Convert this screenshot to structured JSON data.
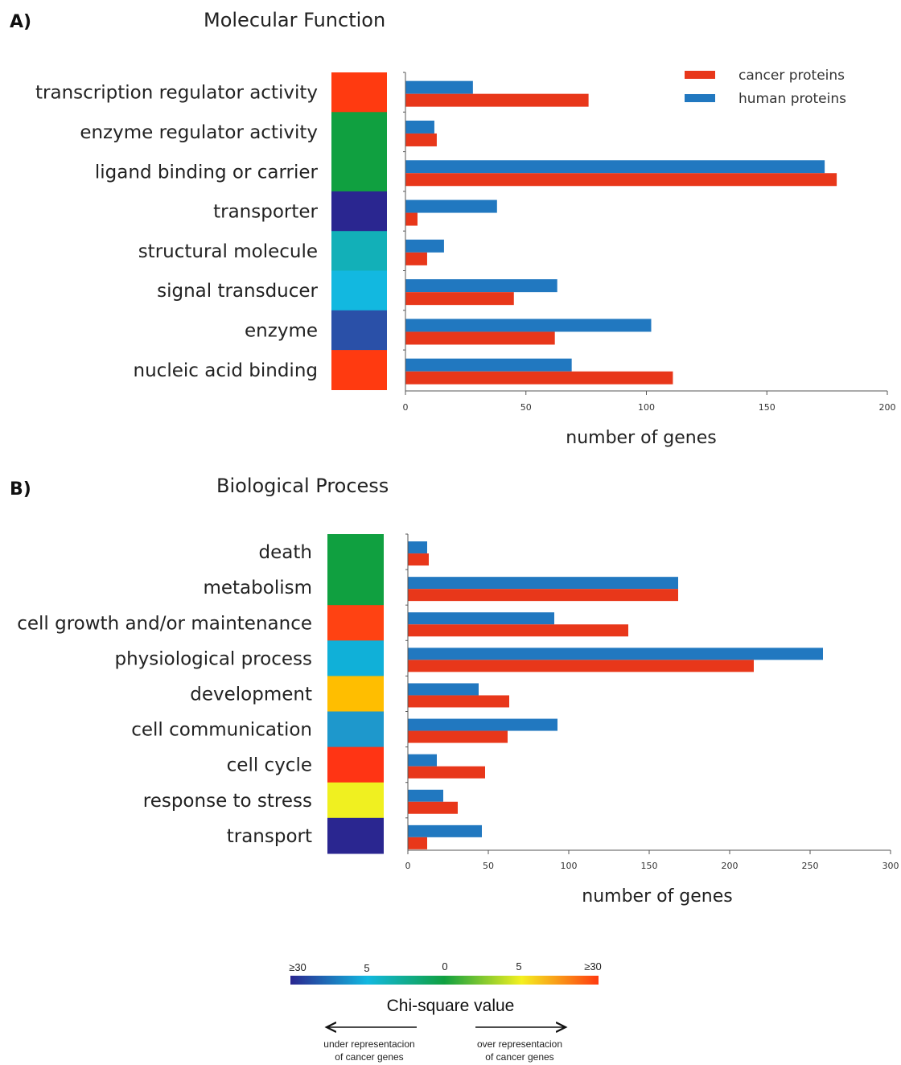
{
  "colors": {
    "cancer": "#e8371a",
    "human": "#2178c0",
    "axis": "#555555"
  },
  "chart_data": [
    {
      "panel_letter": "A)",
      "title": "Molecular Function",
      "type": "bar",
      "orientation": "horizontal",
      "xlabel": "number of genes",
      "xlim": [
        0,
        200
      ],
      "xticks": [
        "0",
        "50",
        "100",
        "150",
        "200"
      ],
      "legend": {
        "placement": "top-right",
        "entries": [
          "cancer proteins",
          "human proteins"
        ]
      },
      "categories": [
        "transcription regulator activity",
        "enzyme regulator activity",
        "ligand binding or carrier",
        "transporter",
        "structural molecule",
        "signal transducer",
        "enzyme",
        "nucleic acid binding"
      ],
      "heat_colors": [
        "#ff3a10",
        "#10a040",
        "#10a040",
        "#2a2690",
        "#12b0b8",
        "#12b8e0",
        "#2a50a8",
        "#ff3a10"
      ],
      "series": [
        {
          "name": "human proteins",
          "values": [
            28,
            12,
            174,
            38,
            16,
            63,
            102,
            69
          ]
        },
        {
          "name": "cancer proteins",
          "values": [
            76,
            13,
            179,
            5,
            9,
            45,
            62,
            111
          ]
        }
      ]
    },
    {
      "panel_letter": "B)",
      "title": "Biological Process",
      "type": "bar",
      "orientation": "horizontal",
      "xlabel": "number of genes",
      "xlim": [
        0,
        300
      ],
      "xticks": [
        "0",
        "50",
        "100",
        "150",
        "200",
        "250",
        "300"
      ],
      "categories": [
        "death",
        "metabolism",
        "cell growth and/or maintenance",
        "physiological process",
        "development",
        "cell communication",
        "cell cycle",
        "response to stress",
        "transport"
      ],
      "heat_colors": [
        "#10a040",
        "#10a040",
        "#ff4212",
        "#10b0d8",
        "#ffbe00",
        "#1e98cc",
        "#ff3414",
        "#f0f020",
        "#2a2690"
      ],
      "series": [
        {
          "name": "human proteins",
          "values": [
            12,
            168,
            91,
            258,
            44,
            93,
            18,
            22,
            46
          ]
        },
        {
          "name": "cancer proteins",
          "values": [
            13,
            168,
            137,
            215,
            63,
            62,
            48,
            31,
            12
          ]
        }
      ]
    }
  ],
  "colorbar": {
    "ticks": [
      "≥30",
      "5",
      "0",
      "5",
      "≥30"
    ],
    "title": "Chi-square value",
    "left_note": [
      "under representacion",
      "of cancer genes"
    ],
    "right_note": [
      "over representacion",
      "of cancer genes"
    ],
    "gradient": [
      "#2a2690",
      "#12b8e0",
      "#10a040",
      "#f4f020",
      "#ff3a10"
    ]
  }
}
